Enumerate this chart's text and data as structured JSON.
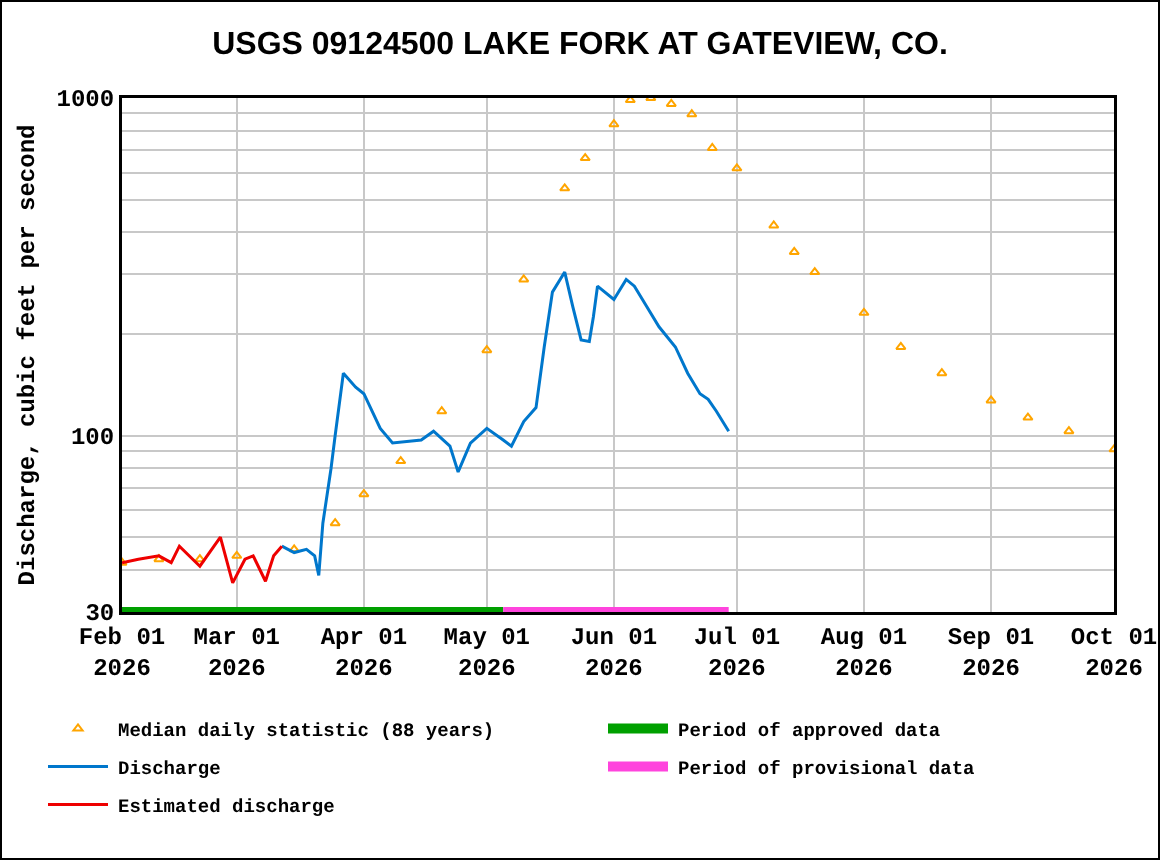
{
  "chart_data": {
    "type": "line",
    "title": "USGS 09124500 LAKE FORK AT GATEVIEW, CO.",
    "ylabel": "Discharge, cubic feet per second",
    "log": "y",
    "grid": true,
    "legend": "bottom",
    "xlim": [
      "2026-02-01",
      "2026-10-01"
    ],
    "xticks": [
      {
        "value": "2026-02-01",
        "label": "Feb 01\n2026"
      },
      {
        "value": "2026-03-01",
        "label": "Mar 01\n2026"
      },
      {
        "value": "2026-04-01",
        "label": "Apr 01\n2026"
      },
      {
        "value": "2026-05-01",
        "label": "May 01\n2026"
      },
      {
        "value": "2026-06-01",
        "label": "Jun 01\n2026"
      },
      {
        "value": "2026-07-01",
        "label": "Jul 01\n2026"
      },
      {
        "value": "2026-08-01",
        "label": "Aug 01\n2026"
      },
      {
        "value": "2026-09-01",
        "label": "Sep 01\n2026"
      },
      {
        "value": "2026-10-01",
        "label": "Oct 01\n2026"
      }
    ],
    "ylim": [
      30,
      1000
    ],
    "yticks": [
      30,
      {
        "value": 40,
        "label": null
      },
      {
        "value": 50,
        "label": null
      },
      {
        "value": 60,
        "label": null
      },
      {
        "value": 70,
        "label": null
      },
      {
        "value": 80,
        "label": null
      },
      {
        "value": 90,
        "label": null
      },
      100,
      {
        "value": 200,
        "label": null
      },
      {
        "value": 300,
        "label": null
      },
      {
        "value": 400,
        "label": null
      },
      {
        "value": 500,
        "label": null
      },
      {
        "value": 600,
        "label": null
      },
      {
        "value": 700,
        "label": null
      },
      {
        "value": 800,
        "label": null
      },
      {
        "value": 900,
        "label": null
      },
      1000
    ],
    "series": [
      {
        "name": "Period of approved data",
        "color": "#00a000",
        "marker": "none",
        "x": [
          "2026-02-01",
          "2026-05-05"
        ],
        "values": [
          30,
          30
        ]
      },
      {
        "name": "Period of provisional data",
        "color": "#ff44dd",
        "marker": "none",
        "x": [
          "2026-05-05",
          "2026-06-29"
        ],
        "values": [
          30,
          30
        ]
      },
      {
        "name": "Median daily statistic (88 years)",
        "type": "scatter",
        "marker": "triangle",
        "color": "#ffa500",
        "x": [
          "2026-02-01",
          "2026-02-10",
          "2026-02-20",
          "2026-03-01",
          "2026-03-15",
          "2026-03-25",
          "2026-04-01",
          "2026-04-10",
          "2026-04-20",
          "2026-05-01",
          "2026-05-10",
          "2026-05-20",
          "2026-05-25",
          "2026-06-01",
          "2026-06-05",
          "2026-06-10",
          "2026-06-15",
          "2026-06-20",
          "2026-06-25",
          "2026-07-01",
          "2026-07-10",
          "2026-07-15",
          "2026-07-20",
          "2026-08-01",
          "2026-08-10",
          "2026-08-20",
          "2026-09-01",
          "2026-09-10",
          "2026-09-20",
          "2026-10-01"
        ],
        "values": [
          42,
          43,
          43,
          44,
          46,
          55,
          67,
          84,
          118,
          179,
          290,
          540,
          664,
          836,
          986,
          1000,
          960,
          895,
          711,
          619,
          419,
          350,
          305,
          231,
          183,
          153,
          127,
          113,
          103,
          91
        ]
      },
      {
        "name": "Discharge",
        "marker": "none",
        "color": "#0077cc",
        "x": [
          "2026-03-12",
          "2026-03-15",
          "2026-03-18",
          "2026-03-20",
          "2026-03-21",
          "2026-03-22",
          "2026-03-24",
          "2026-03-25",
          "2026-03-27",
          "2026-03-30",
          "2026-04-01",
          "2026-04-05",
          "2026-04-08",
          "2026-04-15",
          "2026-04-18",
          "2026-04-22",
          "2026-04-24",
          "2026-04-27",
          "2026-05-01",
          "2026-05-05",
          "2026-05-07",
          "2026-05-10",
          "2026-05-13",
          "2026-05-15",
          "2026-05-17",
          "2026-05-20",
          "2026-05-22",
          "2026-05-24",
          "2026-05-26",
          "2026-05-27",
          "2026-05-28",
          "2026-06-01",
          "2026-06-04",
          "2026-06-06",
          "2026-06-09",
          "2026-06-12",
          "2026-06-16",
          "2026-06-19",
          "2026-06-22",
          "2026-06-24",
          "2026-06-26",
          "2026-06-29"
        ],
        "values": [
          47,
          45,
          46,
          44,
          38.5,
          55,
          80,
          100,
          153,
          139,
          133,
          105,
          95,
          97,
          103,
          93,
          78,
          95,
          105,
          97,
          93,
          110,
          121,
          183,
          266,
          305,
          240,
          192,
          190,
          225,
          277,
          253,
          290,
          277,
          241,
          210,
          183,
          153,
          133,
          128,
          118,
          103
        ]
      },
      {
        "name": "Estimated discharge",
        "marker": "none",
        "color": "#ee0000",
        "x": [
          "2026-02-01",
          "2026-02-05",
          "2026-02-10",
          "2026-02-13",
          "2026-02-15",
          "2026-02-20",
          "2026-02-25",
          "2026-02-28",
          "2026-03-03",
          "2026-03-05",
          "2026-03-08",
          "2026-03-10",
          "2026-03-12"
        ],
        "values": [
          42,
          43,
          44,
          42,
          47,
          41,
          50,
          36.6,
          43,
          44,
          37,
          44,
          47
        ]
      }
    ]
  }
}
